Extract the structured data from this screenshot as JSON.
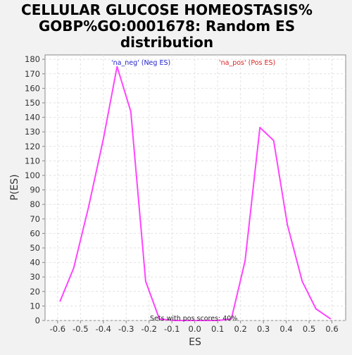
{
  "chart_data": {
    "type": "line",
    "title_lines": [
      "CELLULAR GLUCOSE HOMEOSTASIS%",
      "GOBP%GO:0001678: Random ES",
      "distribution"
    ],
    "xlabel": "ES",
    "ylabel": "P(ES)",
    "xlim": [
      -0.655,
      0.66
    ],
    "ylim": [
      0,
      183
    ],
    "x_ticks": [
      -0.6,
      -0.5,
      -0.4,
      -0.3,
      -0.2,
      -0.1,
      0.0,
      0.1,
      0.2,
      0.3,
      0.4,
      0.5,
      0.6
    ],
    "x_tick_labels": [
      "-0.6",
      "-0.5",
      "-0.4",
      "-0.3",
      "-0.2",
      "-0.1",
      "0.0",
      "0.1",
      "0.2",
      "0.3",
      "0.4",
      "0.5",
      "0.6"
    ],
    "y_ticks": [
      0,
      10,
      20,
      30,
      40,
      50,
      60,
      70,
      80,
      90,
      100,
      110,
      120,
      130,
      140,
      150,
      160,
      170,
      180
    ],
    "y_tick_labels": [
      "0",
      "10",
      "20",
      "30",
      "40",
      "50",
      "60",
      "70",
      "80",
      "90",
      "100",
      "110",
      "120",
      "130",
      "140",
      "150",
      "160",
      "170",
      "180"
    ],
    "grid": true,
    "series": [
      {
        "color": "#ff44ff",
        "x": [
          -0.59,
          -0.53,
          -0.465,
          -0.4,
          -0.34,
          -0.28,
          -0.215,
          -0.155,
          -0.09,
          -0.03,
          0.03,
          0.1,
          0.16,
          0.22,
          0.285,
          0.345,
          0.405,
          0.47,
          0.53,
          0.595
        ],
        "y": [
          13,
          36,
          78,
          125,
          175,
          144,
          27,
          1,
          0,
          0,
          0,
          0,
          1,
          41,
          133,
          124,
          66,
          27,
          8,
          1
        ]
      }
    ],
    "annotations": [
      {
        "text": "'na_neg' (Neg ES)",
        "color": "#2222cc"
      },
      {
        "text": "'na_pos' (Pos ES)",
        "color": "#dd2222"
      },
      {
        "text": "Sets with pos scores: 40%",
        "color": "#222222"
      }
    ]
  }
}
